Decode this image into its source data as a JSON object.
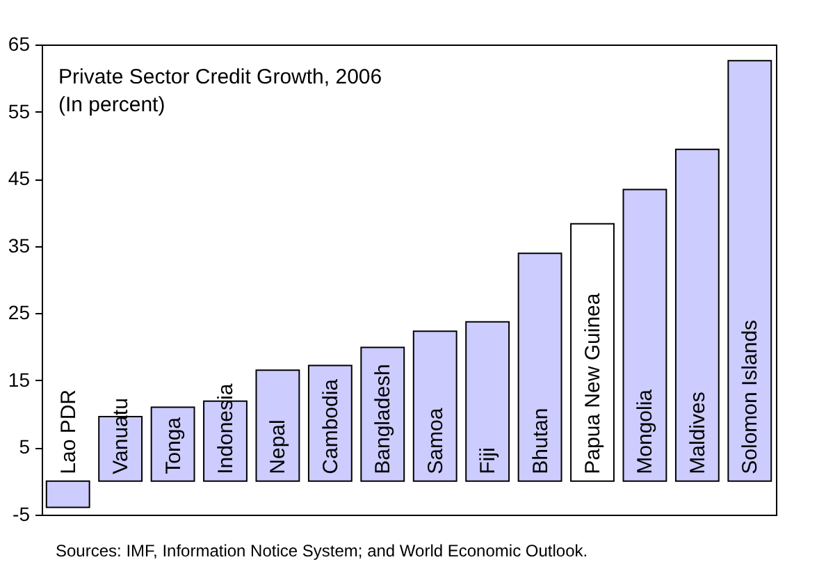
{
  "chart_data": {
    "type": "bar",
    "title": "Private Sector Credit Growth, 2006",
    "subtitle": "(In percent)",
    "categories": [
      "Lao PDR",
      "Vanuatu",
      "Tonga",
      "Indonesia",
      "Nepal",
      "Cambodia",
      "Bangladesh",
      "Samoa",
      "Fiji",
      "Bhutan",
      "Papua New Guinea",
      "Mongolia",
      "Maldives",
      "Solomon Islands"
    ],
    "values": [
      -3.9,
      9.6,
      11.0,
      11.9,
      16.5,
      17.2,
      19.9,
      22.3,
      23.7,
      33.9,
      38.3,
      43.4,
      49.4,
      62.6
    ],
    "colors": [
      "#ccccff",
      "#ccccff",
      "#ccccff",
      "#ccccff",
      "#ccccff",
      "#ccccff",
      "#ccccff",
      "#ccccff",
      "#ccccff",
      "#ccccff",
      "#ffffff",
      "#ccccff",
      "#ccccff",
      "#ccccff"
    ],
    "ylim": [
      -5,
      65
    ],
    "yticks": [
      -5,
      5,
      15,
      25,
      35,
      45,
      55,
      65
    ],
    "grid": false,
    "tick_labels": "y",
    "annotations": [
      "Sources: IMF, Information Notice System; and World Economic Outlook."
    ]
  }
}
